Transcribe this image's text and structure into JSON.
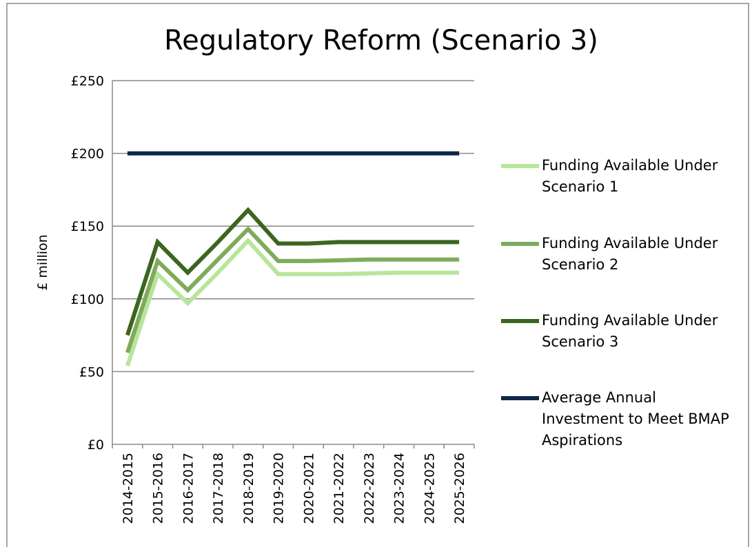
{
  "chart_data": {
    "type": "line",
    "title": "Regulatory Reform (Scenario 3)",
    "y_label": "£ million",
    "categories": [
      "2014-2015",
      "2015-2016",
      "2016-2017",
      "2017-2018",
      "2018-2019",
      "2019-2020",
      "2020-2021",
      "2021-2022",
      "2022-2023",
      "2023-2024",
      "2024-2025",
      "2025-2026"
    ],
    "series": [
      {
        "name": "Funding Available Under Scenario 1",
        "color": "#b8e59c",
        "values": [
          54,
          117,
          97,
          118,
          140,
          117,
          117,
          117,
          117.5,
          118,
          118,
          118
        ]
      },
      {
        "name": "Funding Available Under Scenario 2",
        "color": "#7eab5b",
        "values": [
          63,
          126,
          106,
          127,
          148,
          126,
          126,
          126.5,
          127,
          127,
          127,
          127
        ]
      },
      {
        "name": "Funding Available Under Scenario 3",
        "color": "#3b661f",
        "values": [
          75,
          139,
          118,
          139,
          161,
          138,
          138,
          139,
          139,
          139,
          139,
          139
        ]
      },
      {
        "name": "Average Annual Investment to Meet BMAP Aspirations",
        "color": "#0f2748",
        "values": [
          200,
          200,
          200,
          200,
          200,
          200,
          200,
          200,
          200,
          200,
          200,
          200
        ]
      }
    ],
    "ylim": [
      0,
      250
    ],
    "yticks": [
      {
        "value": 0,
        "label": "£0"
      },
      {
        "value": 50,
        "label": "£50"
      },
      {
        "value": 100,
        "label": "£100"
      },
      {
        "value": 150,
        "label": "£150"
      },
      {
        "value": 200,
        "label": "£200"
      },
      {
        "value": 250,
        "label": "£250"
      }
    ],
    "grid": true,
    "legend": "right"
  }
}
